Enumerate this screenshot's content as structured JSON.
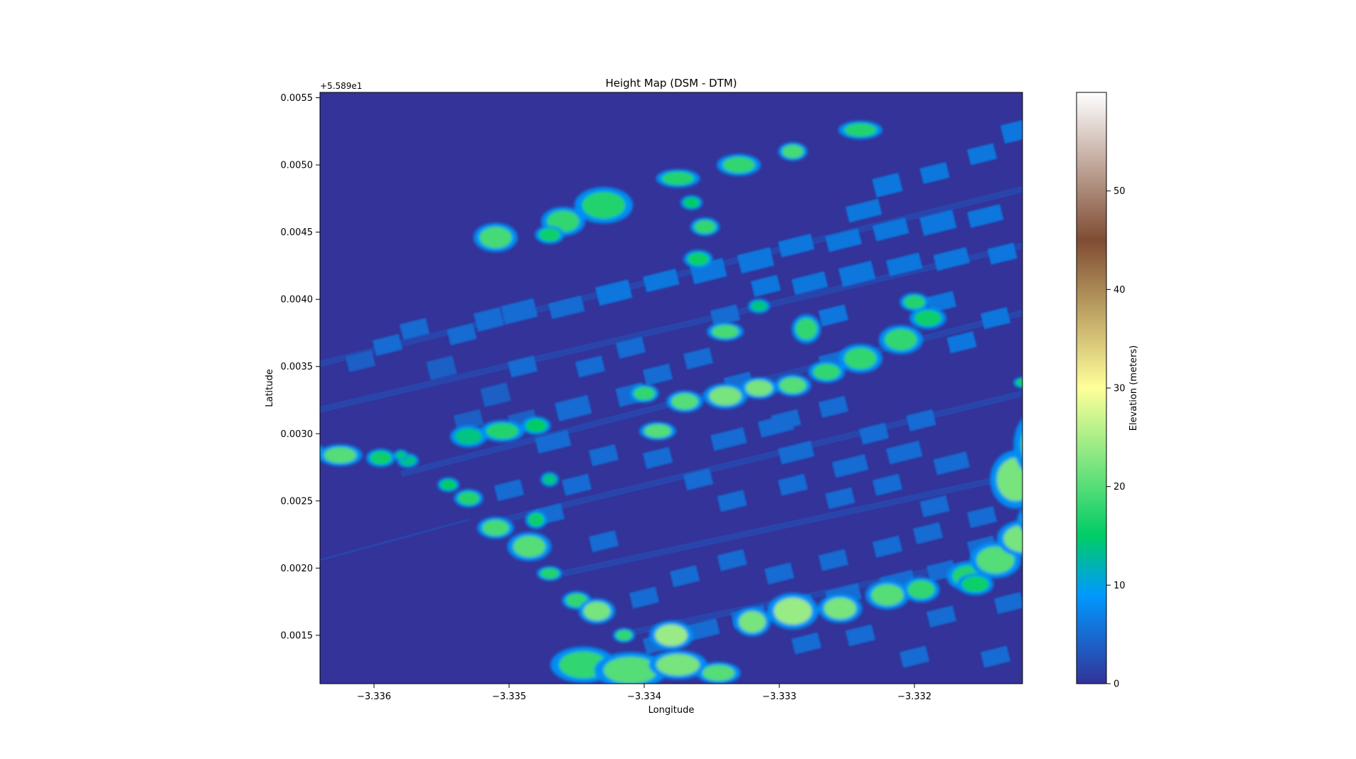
{
  "chart_data": {
    "type": "heatmap",
    "title": "Height Map (DSM - DTM)",
    "xlabel": "Longitude",
    "ylabel": "Latitude",
    "y_offset_label": "+5.589e1",
    "xlim": [
      -3.3364,
      -3.3312
    ],
    "ylim": [
      0.00114,
      0.00554
    ],
    "x_ticks": [
      {
        "value": -3.336,
        "label": "−3.336"
      },
      {
        "value": -3.335,
        "label": "−3.335"
      },
      {
        "value": -3.334,
        "label": "−3.334"
      },
      {
        "value": -3.333,
        "label": "−3.333"
      },
      {
        "value": -3.332,
        "label": "−3.332"
      }
    ],
    "y_ticks": [
      {
        "value": 0.0015,
        "label": "0.0015"
      },
      {
        "value": 0.002,
        "label": "0.0020"
      },
      {
        "value": 0.0025,
        "label": "0.0025"
      },
      {
        "value": 0.003,
        "label": "0.0030"
      },
      {
        "value": 0.0035,
        "label": "0.0035"
      },
      {
        "value": 0.004,
        "label": "0.0040"
      },
      {
        "value": 0.0045,
        "label": "0.0045"
      },
      {
        "value": 0.005,
        "label": "0.0050"
      },
      {
        "value": 0.0055,
        "label": "0.0055"
      }
    ],
    "colorbar": {
      "label": "Elevation (meters)",
      "colormap": "terrain",
      "range": [
        0,
        60
      ],
      "ticks": [
        {
          "value": 0,
          "label": "0"
        },
        {
          "value": 10,
          "label": "10"
        },
        {
          "value": 20,
          "label": "20"
        },
        {
          "value": 30,
          "label": "30"
        },
        {
          "value": 40,
          "label": "40"
        },
        {
          "value": 50,
          "label": "50"
        }
      ],
      "stops": [
        {
          "value": 0,
          "color": "#333399"
        },
        {
          "value": 9,
          "color": "#0099ff"
        },
        {
          "value": 15,
          "color": "#00cc66"
        },
        {
          "value": 30,
          "color": "#ffff99"
        },
        {
          "value": 45,
          "color": "#804c33"
        },
        {
          "value": 60,
          "color": "#ffffff"
        }
      ]
    },
    "features": {
      "buildings": [
        [
          -3.3362,
          0.0036,
          -3.336,
          0.00348,
          4
        ],
        [
          -3.336,
          0.00372,
          -3.3358,
          0.0036,
          5
        ],
        [
          -3.3358,
          0.00384,
          -3.3356,
          0.00372,
          5
        ],
        [
          -3.3356,
          0.00356,
          -3.3354,
          0.00342,
          4
        ],
        [
          -3.33545,
          0.0038,
          -3.33525,
          0.00368,
          5
        ],
        [
          -3.33525,
          0.00392,
          -3.33505,
          0.00378,
          5
        ],
        [
          -3.33505,
          0.00398,
          -3.3348,
          0.00384,
          5
        ],
        [
          -3.3347,
          0.004,
          -3.33445,
          0.00388,
          5
        ],
        [
          -3.33435,
          0.00412,
          -3.3341,
          0.00398,
          6
        ],
        [
          -3.334,
          0.0042,
          -3.33375,
          0.00408,
          6
        ],
        [
          -3.33365,
          0.00428,
          -3.3334,
          0.00414,
          6
        ],
        [
          -3.3333,
          0.00436,
          -3.33305,
          0.00422,
          6
        ],
        [
          -3.333,
          0.00446,
          -3.33275,
          0.00434,
          6
        ],
        [
          -3.33265,
          0.0045,
          -3.3324,
          0.00438,
          6
        ],
        [
          -3.3323,
          0.00458,
          -3.33205,
          0.00446,
          6
        ],
        [
          -3.33195,
          0.00464,
          -3.3317,
          0.0045,
          6
        ],
        [
          -3.3316,
          0.00468,
          -3.33135,
          0.00456,
          6
        ],
        [
          -3.3329,
          0.00418,
          -3.33265,
          0.00406,
          6
        ],
        [
          -3.33255,
          0.00426,
          -3.3323,
          0.00412,
          6
        ],
        [
          -3.3322,
          0.00432,
          -3.33195,
          0.0042,
          6
        ],
        [
          -3.33185,
          0.00436,
          -3.3316,
          0.00424,
          6
        ],
        [
          -3.33145,
          0.0044,
          -3.33125,
          0.00428,
          6
        ],
        [
          -3.3323,
          0.00492,
          -3.3321,
          0.00478,
          6
        ],
        [
          -3.33195,
          0.005,
          -3.33175,
          0.00488,
          6
        ],
        [
          -3.3316,
          0.00514,
          -3.3314,
          0.00502,
          6
        ],
        [
          -3.33135,
          0.00532,
          -3.33115,
          0.00518,
          6
        ],
        [
          -3.3325,
          0.00472,
          -3.33225,
          0.0046,
          6
        ],
        [
          -3.3345,
          0.00356,
          -3.3343,
          0.00344,
          5
        ],
        [
          -3.3342,
          0.0037,
          -3.334,
          0.00358,
          5
        ],
        [
          -3.3352,
          0.00336,
          -3.335,
          0.00322,
          4
        ],
        [
          -3.335,
          0.00356,
          -3.3348,
          0.00344,
          5
        ],
        [
          -3.3354,
          0.00316,
          -3.3352,
          0.00304,
          4
        ],
        [
          -3.335,
          0.00316,
          -3.3348,
          0.00304,
          4
        ],
        [
          -3.33465,
          0.00326,
          -3.3344,
          0.00312,
          5
        ],
        [
          -3.3342,
          0.00336,
          -3.334,
          0.00322,
          5
        ],
        [
          -3.334,
          0.0035,
          -3.3338,
          0.00338,
          5
        ],
        [
          -3.3337,
          0.00362,
          -3.3335,
          0.0035,
          5
        ],
        [
          -3.3334,
          0.00344,
          -3.3332,
          0.0033,
          5
        ],
        [
          -3.33305,
          0.00316,
          -3.33285,
          0.00304,
          5
        ],
        [
          -3.3327,
          0.00326,
          -3.3325,
          0.00314,
          5
        ],
        [
          -3.3324,
          0.00306,
          -3.3322,
          0.00294,
          5
        ],
        [
          -3.33205,
          0.00316,
          -3.33185,
          0.00304,
          5
        ],
        [
          -3.3335,
          0.00302,
          -3.33325,
          0.0029,
          5
        ],
        [
          -3.33315,
          0.00312,
          -3.3329,
          0.003,
          5
        ],
        [
          -3.334,
          0.00288,
          -3.3338,
          0.00276,
          5
        ],
        [
          -3.3337,
          0.00272,
          -3.3335,
          0.0026,
          5
        ],
        [
          -3.33345,
          0.00256,
          -3.33325,
          0.00244,
          5
        ],
        [
          -3.333,
          0.00268,
          -3.3328,
          0.00256,
          5
        ],
        [
          -3.33265,
          0.00258,
          -3.33245,
          0.00246,
          5
        ],
        [
          -3.3323,
          0.00268,
          -3.3321,
          0.00256,
          5
        ],
        [
          -3.333,
          0.00292,
          -3.33275,
          0.0028,
          5
        ],
        [
          -3.3326,
          0.00282,
          -3.33235,
          0.0027,
          5
        ],
        [
          -3.3322,
          0.00292,
          -3.33195,
          0.0028,
          5
        ],
        [
          -3.33185,
          0.00284,
          -3.3316,
          0.00272,
          5
        ],
        [
          -3.33195,
          0.00252,
          -3.33175,
          0.0024,
          5
        ],
        [
          -3.3316,
          0.00244,
          -3.3314,
          0.00232,
          5
        ],
        [
          -3.3319,
          0.00204,
          -3.3317,
          0.00192,
          5
        ],
        [
          -3.33225,
          0.00196,
          -3.332,
          0.00184,
          5
        ],
        [
          -3.33265,
          0.00186,
          -3.3324,
          0.00174,
          5
        ],
        [
          -3.333,
          0.00178,
          -3.33275,
          0.00166,
          5
        ],
        [
          -3.33335,
          0.0017,
          -3.3331,
          0.00158,
          5
        ],
        [
          -3.3337,
          0.0016,
          -3.33345,
          0.00148,
          5
        ],
        [
          -3.334,
          0.0015,
          -3.3338,
          0.00138,
          5
        ],
        [
          -3.3344,
          0.00226,
          -3.3342,
          0.00214,
          5
        ],
        [
          -3.3348,
          0.00246,
          -3.3346,
          0.00234,
          5
        ],
        [
          -3.3346,
          0.00268,
          -3.3344,
          0.00256,
          5
        ],
        [
          -3.3351,
          0.00264,
          -3.3349,
          0.00252,
          5
        ],
        [
          -3.3344,
          0.0029,
          -3.3342,
          0.00278,
          5
        ],
        [
          -3.3348,
          0.003,
          -3.33455,
          0.00288,
          5
        ],
        [
          -3.33345,
          0.00212,
          -3.33325,
          0.002,
          5
        ],
        [
          -3.3331,
          0.00202,
          -3.3329,
          0.0019,
          5
        ],
        [
          -3.3327,
          0.00212,
          -3.3325,
          0.002,
          5
        ],
        [
          -3.3323,
          0.00222,
          -3.3321,
          0.0021,
          5
        ],
        [
          -3.332,
          0.00232,
          -3.3318,
          0.0022,
          5
        ],
        [
          -3.3316,
          0.00222,
          -3.3314,
          0.0021,
          5
        ],
        [
          -3.3338,
          0.002,
          -3.3336,
          0.00188,
          5
        ],
        [
          -3.3341,
          0.00184,
          -3.3339,
          0.00172,
          5
        ],
        [
          -3.3321,
          0.0014,
          -3.3319,
          0.00128,
          5
        ],
        [
          -3.3325,
          0.00156,
          -3.3323,
          0.00144,
          5
        ],
        [
          -3.3329,
          0.0015,
          -3.3327,
          0.00138,
          5
        ],
        [
          -3.3319,
          0.0017,
          -3.3317,
          0.00158,
          5
        ],
        [
          -3.3314,
          0.0018,
          -3.3312,
          0.00168,
          5
        ],
        [
          -3.3315,
          0.0014,
          -3.3313,
          0.00128,
          5
        ],
        [
          -3.3315,
          0.00392,
          -3.3313,
          0.0038,
          6
        ],
        [
          -3.3319,
          0.00404,
          -3.3317,
          0.00392,
          6
        ],
        [
          -3.33175,
          0.00374,
          -3.33155,
          0.00362,
          6
        ],
        [
          -3.3335,
          0.00394,
          -3.3333,
          0.00382,
          5
        ],
        [
          -3.3332,
          0.00416,
          -3.333,
          0.00404,
          6
        ],
        [
          -3.3327,
          0.0036,
          -3.3325,
          0.00348,
          5
        ],
        [
          -3.3327,
          0.00394,
          -3.3325,
          0.00382,
          6
        ]
      ],
      "trees": [
        [
          -3.3365,
          0.00286,
          0.0001,
          6e-05,
          18
        ],
        [
          -3.33625,
          0.00284,
          0.00012,
          6e-05,
          20
        ],
        [
          -3.33595,
          0.00282,
          8e-05,
          5e-05,
          16
        ],
        [
          -3.33575,
          0.0028,
          6e-05,
          4e-05,
          14
        ],
        [
          -3.3353,
          0.00298,
          0.0001,
          6e-05,
          14
        ],
        [
          -3.33505,
          0.00302,
          0.00012,
          6e-05,
          17
        ],
        [
          -3.3348,
          0.00306,
          8e-05,
          5e-05,
          15
        ],
        [
          -3.33545,
          0.00262,
          6e-05,
          4e-05,
          15
        ],
        [
          -3.3353,
          0.00252,
          8e-05,
          5e-05,
          17
        ],
        [
          -3.3351,
          0.0023,
          0.0001,
          6e-05,
          19
        ],
        [
          -3.33485,
          0.00216,
          0.00012,
          8e-05,
          20
        ],
        [
          -3.3348,
          0.00236,
          6e-05,
          5e-05,
          16
        ],
        [
          -3.3347,
          0.00196,
          7e-05,
          4e-05,
          17
        ],
        [
          -3.3347,
          0.00266,
          5e-05,
          4e-05,
          14
        ],
        [
          -3.3345,
          0.00176,
          8e-05,
          5e-05,
          18
        ],
        [
          -3.33435,
          0.00168,
          0.0001,
          7e-05,
          22
        ],
        [
          -3.33415,
          0.0015,
          6e-05,
          4e-05,
          18
        ],
        [
          -3.33445,
          0.00128,
          0.00018,
          0.0001,
          18
        ],
        [
          -3.3341,
          0.00124,
          0.0002,
          0.0001,
          20
        ],
        [
          -3.33375,
          0.00128,
          0.00016,
          8e-05,
          22
        ],
        [
          -3.3338,
          0.0015,
          0.00012,
          8e-05,
          24
        ],
        [
          -3.33345,
          0.00122,
          0.00012,
          6e-05,
          20
        ],
        [
          -3.3339,
          0.00302,
          0.0001,
          5e-05,
          20
        ],
        [
          -3.334,
          0.0033,
          8e-05,
          5e-05,
          18
        ],
        [
          -3.3337,
          0.00324,
          0.0001,
          6e-05,
          20
        ],
        [
          -3.3334,
          0.00328,
          0.00012,
          7e-05,
          22
        ],
        [
          -3.33315,
          0.00334,
          0.0001,
          6e-05,
          22
        ],
        [
          -3.3329,
          0.00336,
          0.0001,
          6e-05,
          20
        ],
        [
          -3.33265,
          0.00346,
          0.0001,
          6e-05,
          18
        ],
        [
          -3.3324,
          0.00356,
          0.00012,
          8e-05,
          18
        ],
        [
          -3.3321,
          0.0037,
          0.00012,
          8e-05,
          18
        ],
        [
          -3.3319,
          0.00386,
          0.0001,
          6e-05,
          16
        ],
        [
          -3.332,
          0.00398,
          8e-05,
          5e-05,
          17
        ],
        [
          -3.3328,
          0.00378,
          8e-05,
          8e-05,
          18
        ],
        [
          -3.3334,
          0.00376,
          0.0001,
          5e-05,
          19
        ],
        [
          -3.3332,
          0.0016,
          0.0001,
          8e-05,
          22
        ],
        [
          -3.3329,
          0.00168,
          0.00014,
          0.0001,
          24
        ],
        [
          -3.33255,
          0.0017,
          0.00012,
          8e-05,
          22
        ],
        [
          -3.3322,
          0.0018,
          0.00012,
          8e-05,
          20
        ],
        [
          -3.33195,
          0.00184,
          0.0001,
          7e-05,
          18
        ],
        [
          -3.3316,
          0.00194,
          0.00012,
          8e-05,
          17
        ],
        [
          -3.3314,
          0.00206,
          0.00014,
          0.0001,
          20
        ],
        [
          -3.3312,
          0.00222,
          0.00014,
          0.0001,
          22
        ],
        [
          -3.33105,
          0.00236,
          0.00014,
          0.0001,
          24
        ],
        [
          -3.33155,
          0.00188,
          0.0001,
          6e-05,
          16
        ],
        [
          -3.33125,
          0.00266,
          0.00014,
          0.00016,
          22
        ],
        [
          -3.33105,
          0.00292,
          0.00016,
          0.0002,
          20
        ],
        [
          -3.33085,
          0.00306,
          0.00014,
          0.00018,
          18
        ],
        [
          -3.3333,
          0.005,
          0.00012,
          6e-05,
          18
        ],
        [
          -3.3329,
          0.0051,
          8e-05,
          5e-05,
          19
        ],
        [
          -3.3324,
          0.00526,
          0.00012,
          5e-05,
          17
        ],
        [
          -3.33375,
          0.0049,
          0.00012,
          5e-05,
          17
        ],
        [
          -3.3343,
          0.0047,
          0.00016,
          0.0001,
          17
        ],
        [
          -3.3346,
          0.00458,
          0.00012,
          8e-05,
          18
        ],
        [
          -3.3347,
          0.00448,
          8e-05,
          5e-05,
          16
        ],
        [
          -3.3351,
          0.00446,
          0.00012,
          8e-05,
          19
        ],
        [
          -3.33365,
          0.00472,
          6e-05,
          4e-05,
          15
        ],
        [
          -3.33355,
          0.00454,
          8e-05,
          5e-05,
          18
        ],
        [
          -3.3336,
          0.0043,
          8e-05,
          5e-05,
          16
        ],
        [
          -3.33315,
          0.00395,
          6e-05,
          4e-05,
          14
        ],
        [
          -3.3312,
          0.00338,
          5e-05,
          3e-05,
          16
        ],
        [
          -3.33075,
          0.00376,
          6e-05,
          6e-05,
          16
        ],
        [
          -3.3358,
          0.00284,
          4e-05,
          3e-05,
          14
        ]
      ]
    }
  }
}
